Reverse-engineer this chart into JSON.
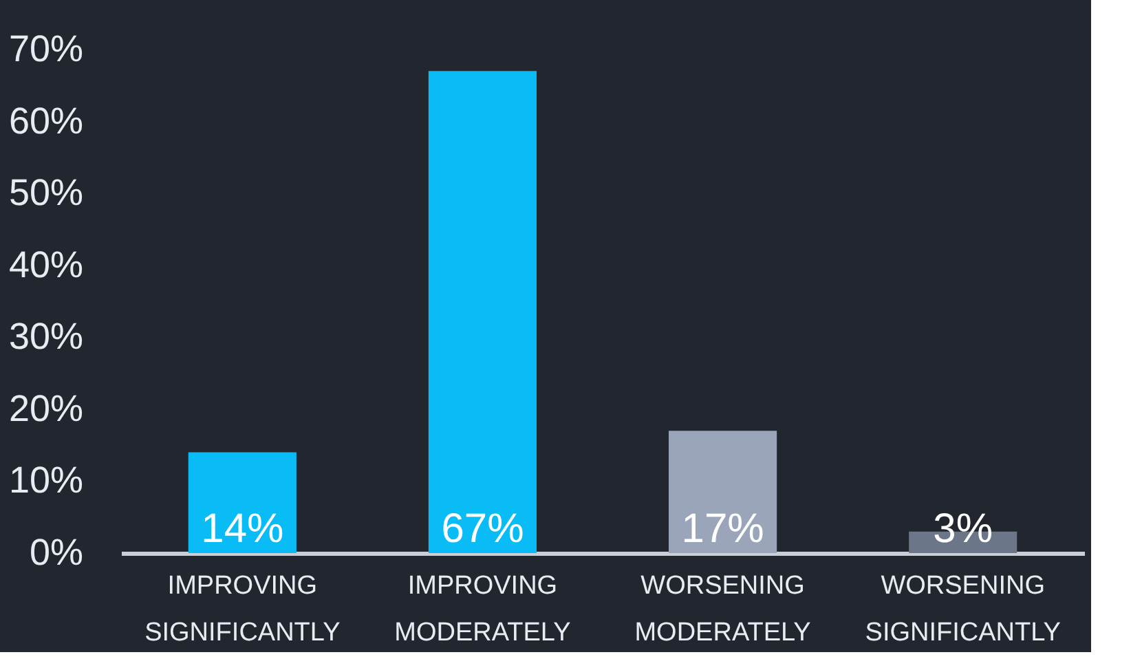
{
  "chart_data": {
    "type": "bar",
    "categories": [
      "IMPROVING SIGNIFICANTLY",
      "IMPROVING MODERATELY",
      "WORSENING MODERATELY",
      "WORSENING SIGNIFICANTLY"
    ],
    "values": [
      14,
      67,
      17,
      3
    ],
    "colors": [
      "#0abcf5",
      "#0abcf5",
      "#9aa5ba",
      "#6b7689"
    ],
    "value_labels": [
      "14%",
      "67%",
      "17%",
      "3%"
    ],
    "ylim": [
      0,
      70
    ],
    "yticks": [
      {
        "value": 0,
        "label": "0%"
      },
      {
        "value": 10,
        "label": "10%"
      },
      {
        "value": 20,
        "label": "20%"
      },
      {
        "value": 30,
        "label": "30%"
      },
      {
        "value": 40,
        "label": "40%"
      },
      {
        "value": 50,
        "label": "50%"
      },
      {
        "value": 60,
        "label": "60%"
      },
      {
        "value": 70,
        "label": "70%"
      }
    ],
    "grid": false
  }
}
